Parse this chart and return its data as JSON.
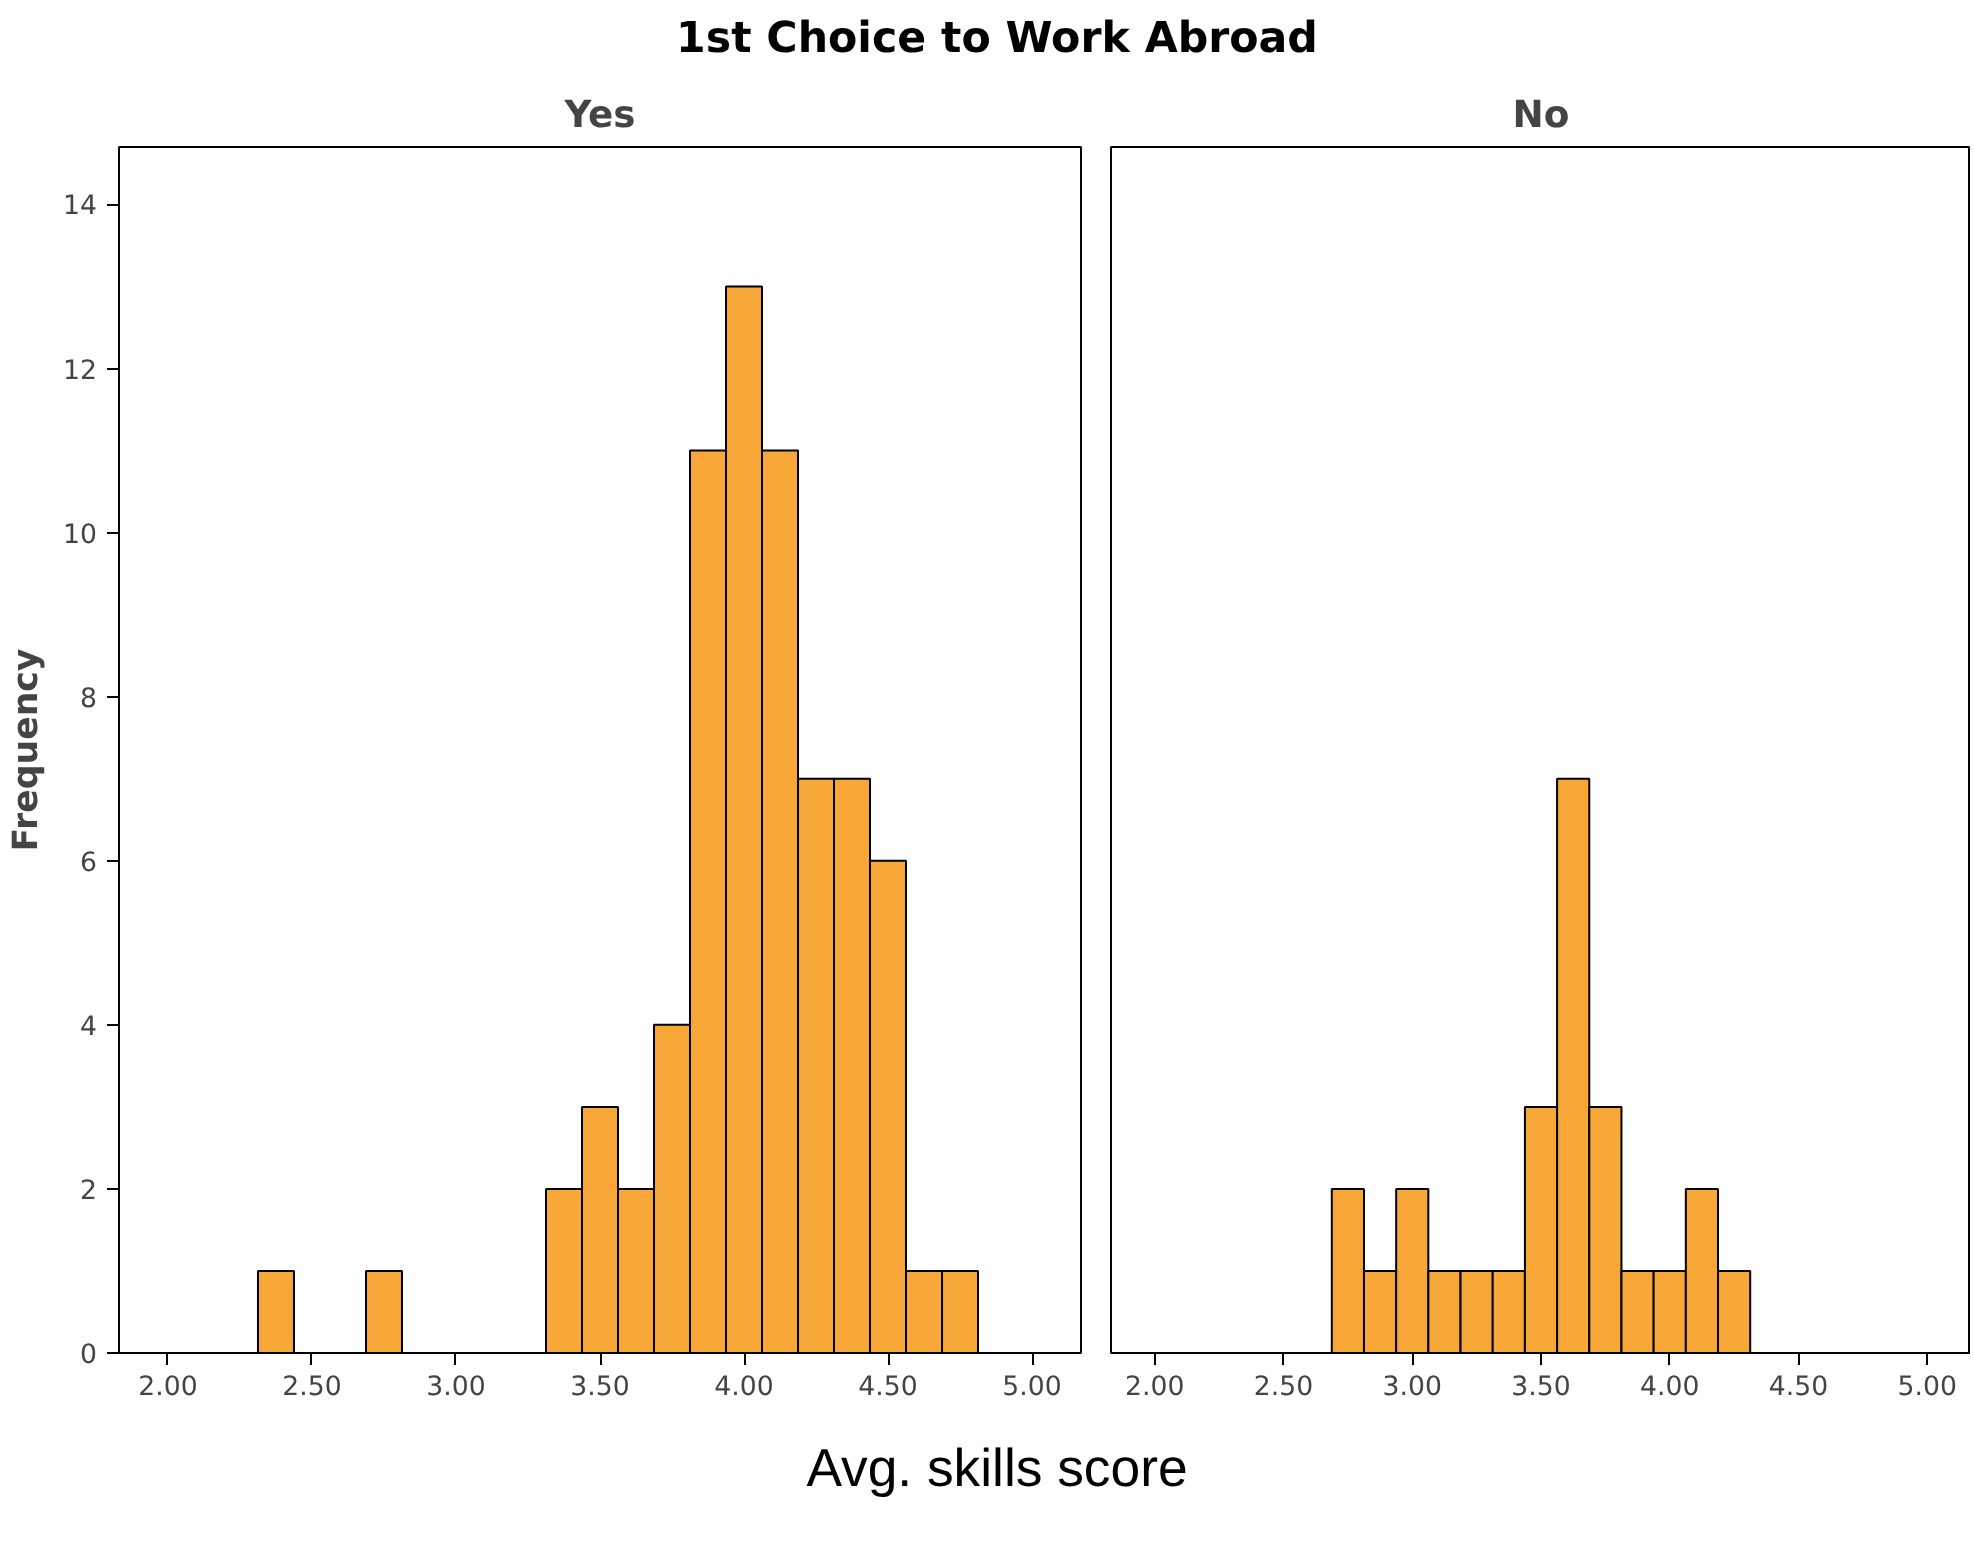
{
  "chart_data": [
    {
      "type": "histogram",
      "title": "Yes",
      "annotations": [
        "1st Choice to Work Abroad"
      ],
      "xlabel": "Avg. skills score",
      "ylabel": "Frequency",
      "color": "#f7a738",
      "bins": [
        2.3125,
        2.4375,
        2.5625,
        2.6875,
        2.8125,
        2.9375,
        3.0625,
        3.1875,
        3.3125,
        3.4375,
        3.5625,
        3.6875,
        3.8125,
        3.9375,
        4.0625,
        4.1875,
        4.3125,
        4.4375,
        4.5625,
        4.6875,
        4.8125
      ],
      "values": [
        1,
        0,
        0,
        1,
        0,
        0,
        0,
        0,
        2,
        3,
        2,
        4,
        11,
        13,
        11,
        7,
        7,
        6,
        1,
        1
      ],
      "xlim": [
        1.83,
        5.17
      ],
      "ylim": [
        0,
        14.7
      ],
      "xticks": [
        {
          "value": 2,
          "label": "2.00"
        },
        {
          "value": 2.5,
          "label": "2.50"
        },
        {
          "value": 3,
          "label": "3.00"
        },
        {
          "value": 3.5,
          "label": "3.50"
        },
        {
          "value": 4,
          "label": "4.00"
        },
        {
          "value": 4.5,
          "label": "4.50"
        },
        {
          "value": 5,
          "label": "5.00"
        }
      ],
      "yticks": [
        0,
        2,
        4,
        6,
        8,
        10,
        12,
        14
      ],
      "grid": false
    },
    {
      "type": "histogram",
      "title": "No",
      "color": "#f7a738",
      "bins": [
        2.6875,
        2.8125,
        2.9375,
        3.0625,
        3.1875,
        3.3125,
        3.4375,
        3.5625,
        3.6875,
        3.8125,
        3.9375,
        4.0625,
        4.1875,
        4.3125
      ],
      "values": [
        2,
        1,
        2,
        1,
        1,
        1,
        3,
        7,
        3,
        1,
        1,
        2,
        1
      ],
      "xlim": [
        1.83,
        5.17
      ],
      "ylim": [
        0,
        14.7
      ],
      "xticks": [
        {
          "value": 2,
          "label": "2.00"
        },
        {
          "value": 2.5,
          "label": "2.50"
        },
        {
          "value": 3,
          "label": "3.00"
        },
        {
          "value": 3.5,
          "label": "3.50"
        },
        {
          "value": 4,
          "label": "4.00"
        },
        {
          "value": 4.5,
          "label": "4.50"
        },
        {
          "value": 5,
          "label": "5.00"
        }
      ],
      "yticks": [
        0,
        2,
        4,
        6,
        8,
        10,
        12,
        14
      ],
      "grid": false,
      "tick_labels": "x"
    }
  ]
}
